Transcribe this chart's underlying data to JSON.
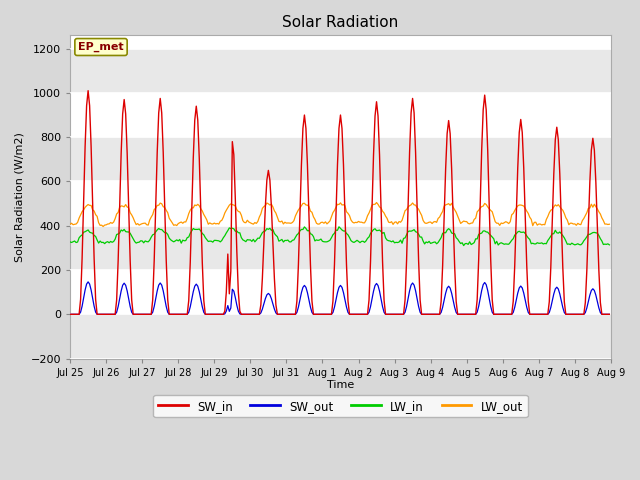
{
  "title": "Solar Radiation",
  "ylabel": "Solar Radiation (W/m2)",
  "xlabel": "Time",
  "ylim": [
    -200,
    1260
  ],
  "yticks": [
    -200,
    0,
    200,
    400,
    600,
    800,
    1000,
    1200
  ],
  "annotation_text": "EP_met",
  "annotation_bg": "#ffffcc",
  "annotation_border": "#888800",
  "legend_entries": [
    "SW_in",
    "SW_out",
    "LW_in",
    "LW_out"
  ],
  "line_colors": {
    "SW_in": "#dd0000",
    "SW_out": "#0000dd",
    "LW_in": "#00cc00",
    "LW_out": "#ff9900"
  },
  "n_days": 15,
  "hours_per_day": 24,
  "peak_heights": [
    1010,
    970,
    975,
    940,
    800,
    650,
    900,
    900,
    960,
    975,
    875,
    990,
    880,
    845,
    795
  ],
  "tick_labels": [
    "Jul 25",
    "Jul 26",
    "Jul 27",
    "Jul 28",
    "Jul 29",
    "Jul 30",
    "Jul 31",
    "Aug 1",
    "Aug 2",
    "Aug 3",
    "Aug 4",
    "Aug 5",
    "Aug 6",
    "Aug 7",
    "Aug 8",
    "Aug 9"
  ],
  "figsize": [
    6.4,
    4.8
  ],
  "dpi": 100
}
